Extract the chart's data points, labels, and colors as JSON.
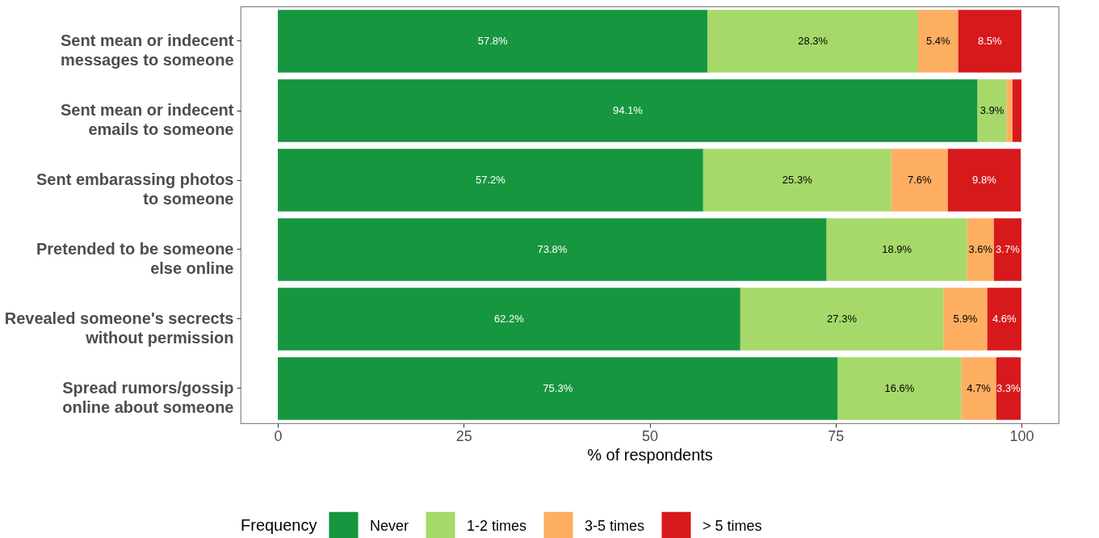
{
  "chart_data": {
    "type": "bar",
    "orientation": "horizontal",
    "stacked": true,
    "xlabel": "% of respondents",
    "legend_title": "Frequency",
    "legend": "bottom",
    "categories": [
      "Sent mean or indecent\nmessages to someone",
      "Sent mean or indecent\nemails to someone",
      "Sent embarassing photos \nto someone",
      "Pretended to be someone\nelse online",
      "Revealed someone's secrects\nwithout permission",
      "Spread rumors/gossip\nonline about someone"
    ],
    "xlim": [
      -5,
      105
    ],
    "xticks": [
      0,
      25,
      50,
      75,
      100
    ],
    "series": [
      {
        "name": "Never",
        "color": "#16963f",
        "values": [
          57.8,
          94.1,
          57.2,
          73.8,
          62.2,
          75.3
        ],
        "value_labels": [
          "57.8%",
          "94.1%",
          "57.2%",
          "73.8%",
          "62.2%",
          "75.3%"
        ]
      },
      {
        "name": "1-2 times",
        "color": "#a6d96a",
        "values": [
          28.3,
          3.9,
          25.3,
          18.9,
          27.3,
          16.6
        ],
        "value_labels": [
          "28.3%",
          "3.9%",
          "25.3%",
          "18.9%",
          "27.3%",
          "16.6%"
        ]
      },
      {
        "name": "3-5 times",
        "color": "#fdae61",
        "values": [
          5.4,
          0.8,
          7.6,
          3.6,
          5.9,
          4.7
        ],
        "value_labels": [
          "5.4%",
          null,
          "7.6%",
          "3.6%",
          "5.9%",
          "4.7%"
        ]
      },
      {
        "name": "> 5 times",
        "color": "#d7191c",
        "values": [
          8.5,
          1.2,
          9.8,
          3.7,
          4.6,
          3.3
        ],
        "value_labels": [
          "8.5%",
          null,
          "9.8%",
          "3.7%",
          "4.6%",
          "3.3%"
        ]
      }
    ]
  }
}
